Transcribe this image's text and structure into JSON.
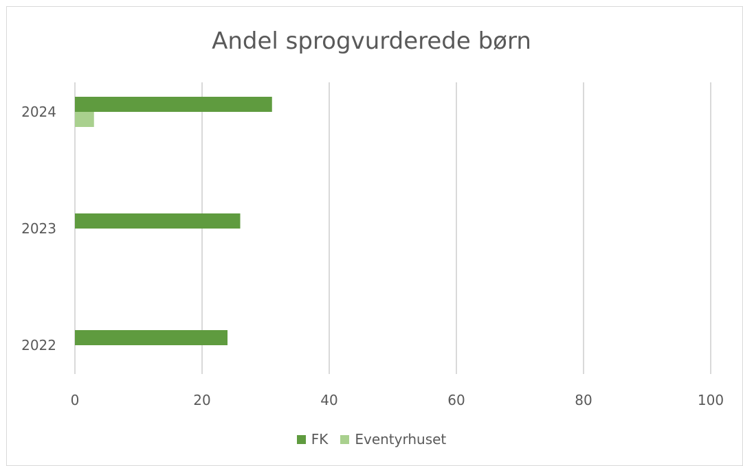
{
  "chart_data": {
    "type": "bar",
    "orientation": "horizontal",
    "title": "Andel sprogvurderede børn",
    "categories": [
      "2024",
      "2023",
      "2022"
    ],
    "series": [
      {
        "name": "FK",
        "color": "#5f9b3f",
        "values": [
          31,
          26,
          24
        ]
      },
      {
        "name": "Eventyrhuset",
        "color": "#a9d08e",
        "values": [
          3,
          null,
          null
        ]
      }
    ],
    "xlim": [
      0,
      100
    ],
    "x_ticks": [
      "0",
      "20",
      "40",
      "60",
      "80",
      "100"
    ],
    "grid": "vertical",
    "legend_position": "bottom"
  }
}
